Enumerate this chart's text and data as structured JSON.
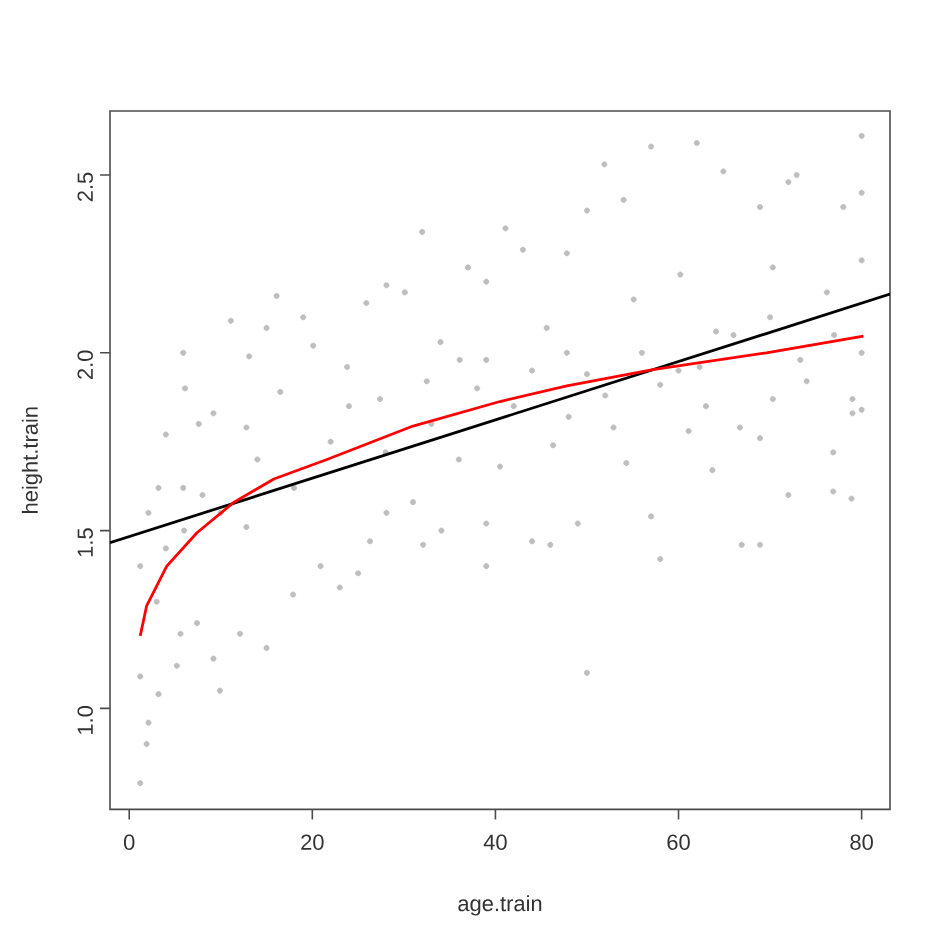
{
  "chart_data": {
    "type": "scatter",
    "xlabel": "age.train",
    "ylabel": "height.train",
    "xlim": [
      -2.1,
      83.1
    ],
    "ylim": [
      0.716,
      2.68
    ],
    "xticks": [
      0,
      20,
      40,
      60,
      80
    ],
    "yticks": [
      {
        "value": 1,
        "label": "1.0"
      },
      {
        "value": 1.5,
        "label": "1.5"
      },
      {
        "value": 2,
        "label": "2.0"
      },
      {
        "value": 2.5,
        "label": "2.5"
      }
    ],
    "series": [
      {
        "marker": "circle",
        "color": "#bebebe",
        "x": [
          1.2,
          1.9,
          2.1,
          1.2,
          3.2,
          9.9,
          15,
          9.2,
          5.2,
          12.1,
          23,
          25,
          20.9,
          17.9,
          1.2,
          2.1,
          3.2,
          5.9,
          31,
          32.1,
          34.1,
          39,
          39,
          26.3,
          28.1,
          12.8,
          7.4,
          5.6,
          50,
          58,
          66.9,
          68.9,
          72,
          76.9,
          78.9,
          46,
          44,
          49,
          57,
          63.7,
          32,
          5.9,
          6.1,
          4,
          11.1,
          16.1,
          19,
          28.1,
          30.1,
          37,
          39,
          13.1,
          15,
          20.1,
          23.8,
          25.9,
          34,
          36.1,
          9.2,
          12.8,
          7.6,
          16.5,
          27.4,
          32.5,
          57,
          62,
          51.9,
          80,
          41.1,
          50,
          54,
          64.9,
          72,
          72.9,
          78,
          80,
          68.9,
          43,
          47.8,
          60.2,
          70.3,
          76.2,
          80,
          45.6,
          55.1,
          64.1,
          73.3,
          79,
          79,
          70.3,
          66.7,
          61.1,
          52.9,
          46.3,
          40.5,
          54.3,
          68.9,
          76.9,
          80,
          39,
          50,
          58,
          62.3,
          47.8,
          3,
          4,
          6,
          8,
          10,
          14,
          18,
          22,
          24,
          28,
          33,
          36,
          38,
          42,
          44,
          48,
          52,
          56,
          60,
          63,
          66,
          70,
          74,
          77,
          80
        ],
        "values": [
          0.79,
          0.9,
          0.96,
          1.09,
          1.04,
          1.05,
          1.17,
          1.14,
          1.12,
          1.21,
          1.34,
          1.38,
          1.4,
          1.32,
          1.4,
          1.55,
          1.62,
          1.62,
          1.58,
          1.46,
          1.5,
          1.52,
          1.4,
          1.47,
          1.55,
          1.51,
          1.24,
          1.21,
          1.1,
          1.42,
          1.46,
          1.46,
          1.6,
          1.61,
          1.59,
          1.46,
          1.47,
          1.52,
          1.54,
          1.67,
          2.34,
          2.0,
          1.9,
          1.77,
          2.09,
          2.16,
          2.1,
          2.19,
          2.17,
          2.24,
          2.2,
          1.99,
          2.07,
          2.02,
          1.96,
          2.14,
          2.03,
          1.98,
          1.83,
          1.79,
          1.8,
          1.89,
          1.87,
          1.92,
          2.58,
          2.59,
          2.53,
          2.61,
          2.35,
          2.4,
          2.43,
          2.51,
          2.48,
          2.5,
          2.41,
          2.45,
          2.41,
          2.29,
          2.28,
          2.22,
          2.24,
          2.17,
          2.26,
          2.07,
          2.15,
          2.06,
          1.98,
          1.87,
          1.83,
          1.87,
          1.79,
          1.78,
          1.79,
          1.74,
          1.68,
          1.69,
          1.76,
          1.72,
          1.84,
          1.98,
          1.94,
          1.91,
          1.96,
          2.0,
          1.3,
          1.45,
          1.5,
          1.6,
          1.55,
          1.7,
          1.62,
          1.75,
          1.85,
          1.72,
          1.8,
          1.7,
          1.9,
          1.85,
          1.95,
          1.82,
          1.88,
          2.0,
          1.95,
          1.85,
          2.05,
          2.1,
          1.92,
          2.05,
          2.0
        ]
      },
      {
        "type": "line",
        "marker": "none",
        "color": "#000000",
        "x": [
          -2.1,
          83.1
        ],
        "values": [
          1.466,
          2.165
        ]
      },
      {
        "type": "line",
        "marker": "none",
        "color": "#ff0000",
        "x": [
          1.2,
          1.9,
          4.1,
          7.4,
          11.4,
          15.8,
          21.6,
          31.0,
          40.5,
          47.8,
          57.2,
          69.6,
          80.2
        ],
        "values": [
          1.204,
          1.288,
          1.4,
          1.494,
          1.579,
          1.645,
          1.7,
          1.794,
          1.863,
          1.907,
          1.953,
          2.0,
          2.047
        ]
      }
    ]
  }
}
